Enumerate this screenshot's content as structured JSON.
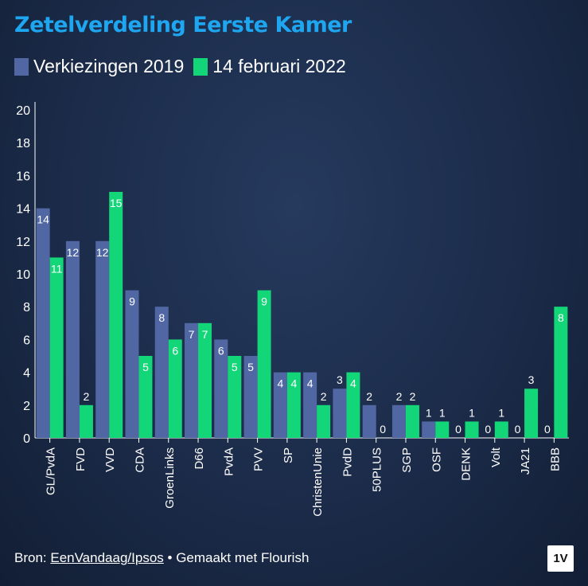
{
  "title": "Zetelverdeling Eerste Kamer",
  "footer": {
    "source_prefix": "Bron: ",
    "source_link": "EenVandaag/Ipsos",
    "separator": " • ",
    "made_with": "Gemaakt met Flourish"
  },
  "logo": "1V",
  "colors": {
    "series_2019": "#5067a3",
    "series_2022": "#13d678",
    "title": "#1ea6f0",
    "background": "#1b2b49"
  },
  "chart_data": {
    "type": "bar",
    "title": "Zetelverdeling Eerste Kamer",
    "xlabel": "",
    "ylabel": "",
    "ylim": [
      0,
      20
    ],
    "yticks": [
      0,
      2,
      4,
      6,
      8,
      10,
      12,
      14,
      16,
      18,
      20
    ],
    "grid": false,
    "legend_position": "top-left",
    "categories": [
      "GL/PvdA",
      "FVD",
      "VVD",
      "CDA",
      "GroenLinks",
      "D66",
      "PvdA",
      "PVV",
      "SP",
      "ChristenUnie",
      "PvdD",
      "50PLUS",
      "SGP",
      "OSF",
      "DENK",
      "Volt",
      "JA21",
      "BBB"
    ],
    "series": [
      {
        "name": "Verkiezingen 2019",
        "values": [
          14,
          12,
          12,
          9,
          8,
          7,
          6,
          5,
          4,
          4,
          3,
          2,
          2,
          1,
          0,
          0,
          0,
          0
        ]
      },
      {
        "name": "14 februari 2022",
        "values": [
          11,
          2,
          15,
          5,
          6,
          7,
          5,
          9,
          4,
          2,
          4,
          0,
          2,
          1,
          1,
          1,
          3,
          8
        ]
      }
    ]
  }
}
